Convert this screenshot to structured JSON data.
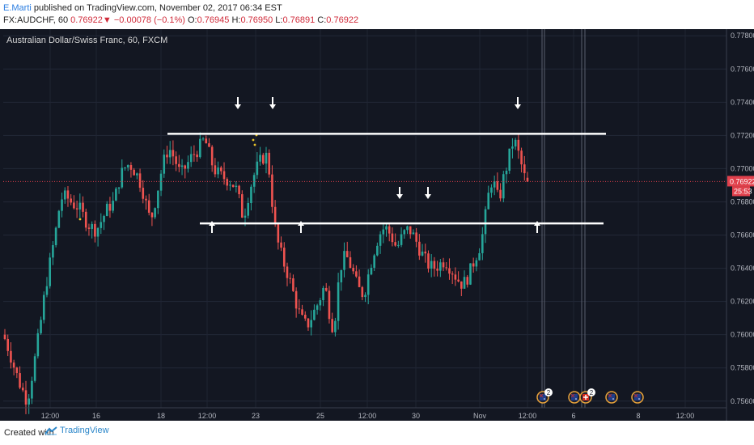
{
  "header": {
    "author": "E.Marti",
    "published_text": " published on TradingView.com, November 02, 2017 06:34 EST",
    "symbol": "FX:AUDCHF, 60",
    "last": "0.76922",
    "change": "−0.00078 (−0.1%)",
    "o_label": "O:",
    "o_value": "0.76945",
    "h_label": "H:",
    "h_value": "0.76950",
    "l_label": "L:",
    "l_value": "0.76891",
    "c_label": "C:",
    "c_value": "0.76922"
  },
  "pane_title": "Australian Dollar/Swiss Franc, 60, FXCM",
  "price_tag": "0.76922",
  "countdown": "25:53",
  "footer": {
    "created": "Created with",
    "brand": "TradingView"
  },
  "colors": {
    "bull": "#26a69a",
    "bear": "#ef5350",
    "background": "#131722",
    "level": "#ffffff",
    "price_line": "#e0404c"
  },
  "chart_data": {
    "type": "candlestick",
    "symbol": "FX:AUDCHF",
    "interval": "60",
    "y_ticks": [
      "0.77800",
      "0.77600",
      "0.77400",
      "0.77200",
      "0.77000",
      "0.76800",
      "0.76600",
      "0.76400",
      "0.76200",
      "0.76000",
      "0.75800",
      "0.75600"
    ],
    "x_ticks": [
      "12:00",
      "16",
      "12:00",
      "18",
      "12:00",
      "23",
      "12:00",
      "25",
      "12:00",
      "26",
      "12:00",
      "30",
      "Nov",
      "12:00",
      "6",
      "12:00",
      "8",
      "12:00"
    ],
    "ylim": [
      0.7556,
      0.7784
    ],
    "last_price": 0.76922,
    "resistance": 0.7721,
    "support": 0.7667,
    "path_points": [
      [
        0,
        0.76
      ],
      [
        2,
        0.759
      ],
      [
        4,
        0.7578
      ],
      [
        6,
        0.7568
      ],
      [
        8,
        0.756
      ],
      [
        10,
        0.758
      ],
      [
        12,
        0.7602
      ],
      [
        14,
        0.7628
      ],
      [
        16,
        0.7648
      ],
      [
        18,
        0.7668
      ],
      [
        19,
        0.7682
      ],
      [
        21,
        0.7683
      ],
      [
        23,
        0.7679
      ],
      [
        25,
        0.7677
      ],
      [
        27,
        0.767
      ],
      [
        29,
        0.7665
      ],
      [
        31,
        0.7663
      ],
      [
        33,
        0.767
      ],
      [
        35,
        0.7677
      ],
      [
        37,
        0.768
      ],
      [
        38,
        0.769
      ],
      [
        40,
        0.77
      ],
      [
        42,
        0.7703
      ],
      [
        44,
        0.7698
      ],
      [
        46,
        0.769
      ],
      [
        48,
        0.7675
      ],
      [
        49,
        0.7668
      ],
      [
        51,
        0.7684
      ],
      [
        53,
        0.7702
      ],
      [
        55,
        0.7713
      ],
      [
        57,
        0.7706
      ],
      [
        59,
        0.7696
      ],
      [
        61,
        0.7702
      ],
      [
        63,
        0.7708
      ],
      [
        65,
        0.7712
      ],
      [
        67,
        0.7718
      ],
      [
        68,
        0.7712
      ],
      [
        70,
        0.77
      ],
      [
        72,
        0.7696
      ],
      [
        74,
        0.7694
      ],
      [
        76,
        0.7692
      ],
      [
        78,
        0.7686
      ],
      [
        79,
        0.7676
      ],
      [
        80,
        0.767
      ],
      [
        81,
        0.768
      ],
      [
        83,
        0.7694
      ],
      [
        85,
        0.7703
      ],
      [
        87,
        0.7708
      ],
      [
        88,
        0.7707
      ],
      [
        89,
        0.769
      ],
      [
        90,
        0.767
      ],
      [
        91,
        0.7658
      ],
      [
        93,
        0.7645
      ],
      [
        95,
        0.7635
      ],
      [
        97,
        0.7622
      ],
      [
        99,
        0.761
      ],
      [
        101,
        0.7605
      ],
      [
        103,
        0.7612
      ],
      [
        105,
        0.762
      ],
      [
        107,
        0.763
      ],
      [
        108,
        0.762
      ],
      [
        109,
        0.7608
      ],
      [
        110,
        0.7604
      ],
      [
        111,
        0.762
      ],
      [
        112,
        0.764
      ],
      [
        114,
        0.7648
      ],
      [
        116,
        0.764
      ],
      [
        118,
        0.7628
      ],
      [
        120,
        0.7624
      ],
      [
        121,
        0.7632
      ],
      [
        123,
        0.7648
      ],
      [
        125,
        0.766
      ],
      [
        127,
        0.7665
      ],
      [
        129,
        0.766
      ],
      [
        131,
        0.7652
      ],
      [
        133,
        0.766
      ],
      [
        135,
        0.7664
      ],
      [
        137,
        0.7658
      ],
      [
        139,
        0.765
      ],
      [
        141,
        0.7643
      ],
      [
        143,
        0.764
      ],
      [
        145,
        0.7642
      ],
      [
        147,
        0.7645
      ],
      [
        149,
        0.764
      ],
      [
        151,
        0.7634
      ],
      [
        153,
        0.763
      ],
      [
        155,
        0.7636
      ],
      [
        157,
        0.7646
      ],
      [
        159,
        0.7655
      ],
      [
        160,
        0.7665
      ],
      [
        161,
        0.7678
      ],
      [
        162,
        0.769
      ],
      [
        163,
        0.7694
      ],
      [
        164,
        0.7686
      ],
      [
        165,
        0.768
      ],
      [
        166,
        0.769
      ],
      [
        167,
        0.7698
      ],
      [
        168,
        0.7704
      ],
      [
        169,
        0.7712
      ],
      [
        170,
        0.7718
      ],
      [
        171,
        0.7712
      ],
      [
        172,
        0.7706
      ],
      [
        173,
        0.7698
      ],
      [
        174,
        0.7692
      ]
    ]
  }
}
